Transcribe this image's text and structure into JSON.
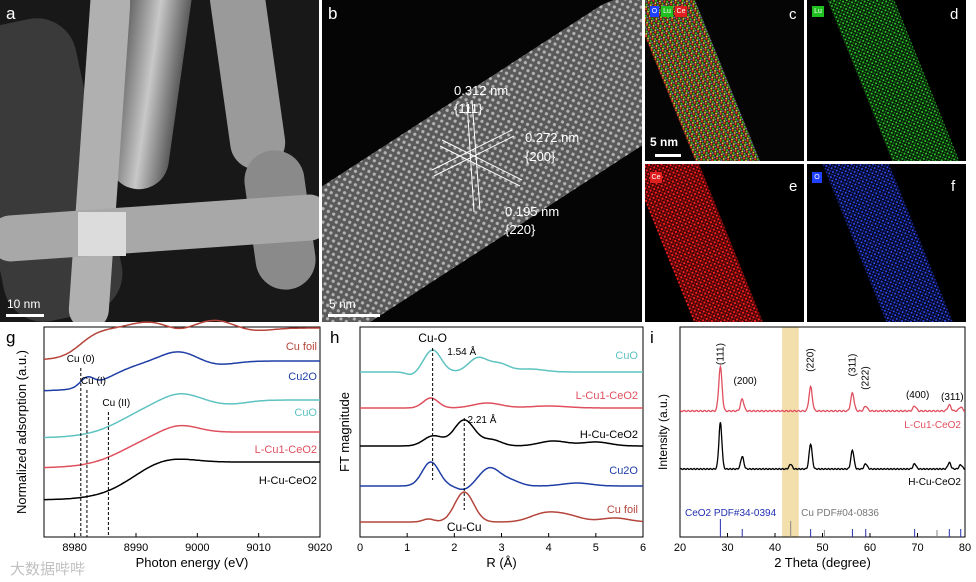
{
  "panels": {
    "a": {
      "label": "a",
      "scale_text": "10 nm"
    },
    "b": {
      "label": "b",
      "scale_text": "5 nm",
      "annotations": [
        {
          "value": "0.312 nm",
          "plane": "{111}"
        },
        {
          "value": "0.272 nm",
          "plane": "{200}"
        },
        {
          "value": "0.195 nm",
          "plane": "{220}"
        }
      ]
    },
    "c": {
      "label": "c",
      "scale_text": "5 nm",
      "legend": [
        "O",
        "Lu",
        "Ce"
      ]
    },
    "d": {
      "label": "d",
      "legend": [
        "Lu"
      ]
    },
    "e": {
      "label": "e",
      "legend": [
        "Ce"
      ]
    },
    "f": {
      "label": "f",
      "legend": [
        "O"
      ]
    },
    "g": {
      "label": "g"
    },
    "h": {
      "label": "h"
    },
    "i": {
      "label": "i"
    }
  },
  "colors": {
    "cu_foil": "#b5453b",
    "cu2o": "#1f3ea6",
    "cuo": "#5ec3c1",
    "l_cu": "#e0505f",
    "h_cu": "#000000",
    "band": "#f3dfab"
  },
  "chart_data": [
    {
      "type": "line",
      "panel": "g",
      "xlabel": "Photon energy (eV)",
      "ylabel": "Normalized adsorption (a.u.)",
      "xlim": [
        8975,
        9020
      ],
      "xticks": [
        "8980",
        "8990",
        "9000",
        "9010",
        "9020"
      ],
      "reference_lines": [
        {
          "label": "Cu (0)",
          "x": 8981
        },
        {
          "label": "Cu (I)",
          "x": 8982
        },
        {
          "label": "Cu (II)",
          "x": 8985.5
        }
      ],
      "series": [
        {
          "name": "Cu foil",
          "label_text": "Cu foil"
        },
        {
          "name": "Cu2O",
          "label_text": "Cu2O"
        },
        {
          "name": "CuO",
          "label_text": "CuO"
        },
        {
          "name": "L-Cu1-CeO2",
          "label_text": "L-Cu1-CeO2"
        },
        {
          "name": "H-Cu-CeO2",
          "label_text": "H-Cu-CeO2"
        }
      ]
    },
    {
      "type": "line",
      "panel": "h",
      "xlabel": "R (Å)",
      "ylabel": "FT magnitude",
      "xlim": [
        0,
        6
      ],
      "xticks": [
        "0",
        "1",
        "2",
        "3",
        "4",
        "5",
        "6"
      ],
      "annotations": [
        "Cu-O",
        "1.54 Å",
        "2.21 Å",
        "Cu-Cu"
      ],
      "reference_lines": [
        {
          "x": 1.54
        },
        {
          "x": 2.21
        }
      ],
      "series": [
        {
          "name": "CuO",
          "label_text": "CuO"
        },
        {
          "name": "L-Cu1-CeO2",
          "label_text": "L-Cu1-CeO2"
        },
        {
          "name": "H-Cu-CeO2",
          "label_text": "H-Cu-CeO2"
        },
        {
          "name": "Cu2O",
          "label_text": "Cu2O"
        },
        {
          "name": "Cu foil",
          "label_text": "Cu foil"
        }
      ]
    },
    {
      "type": "line",
      "panel": "i",
      "xlabel": "2 Theta (degree)",
      "ylabel": "Intensity (a.u.)",
      "xlim": [
        20,
        80
      ],
      "xticks": [
        "20",
        "30",
        "40",
        "50",
        "60",
        "70",
        "80"
      ],
      "peak_labels": [
        {
          "text": "(111)",
          "x": 28.5
        },
        {
          "text": "(200)",
          "x": 33.1
        },
        {
          "text": "(220)",
          "x": 47.5
        },
        {
          "text": "(311)",
          "x": 56.3
        },
        {
          "text": "(222)",
          "x": 59.1
        },
        {
          "text": "(400)",
          "x": 69.4
        },
        {
          "text": "(311)",
          "x": 76.7
        }
      ],
      "highlight_band": [
        41.5,
        45
      ],
      "series": [
        {
          "name": "L-Cu1-CeO2",
          "label_text": "L-Cu1-CeO2"
        },
        {
          "name": "H-Cu-CeO2",
          "label_text": "H-Cu-CeO2"
        }
      ],
      "references": [
        {
          "text": "CeO2 PDF#34-0394",
          "positions": [
            28.5,
            33.1,
            47.5,
            56.3,
            59.1,
            69.4,
            76.7,
            79.1
          ]
        },
        {
          "text": "Cu PDF#04-0836",
          "positions": [
            43.3,
            50.4,
            74.1
          ]
        }
      ]
    }
  ],
  "watermark": "大数据哔哔"
}
